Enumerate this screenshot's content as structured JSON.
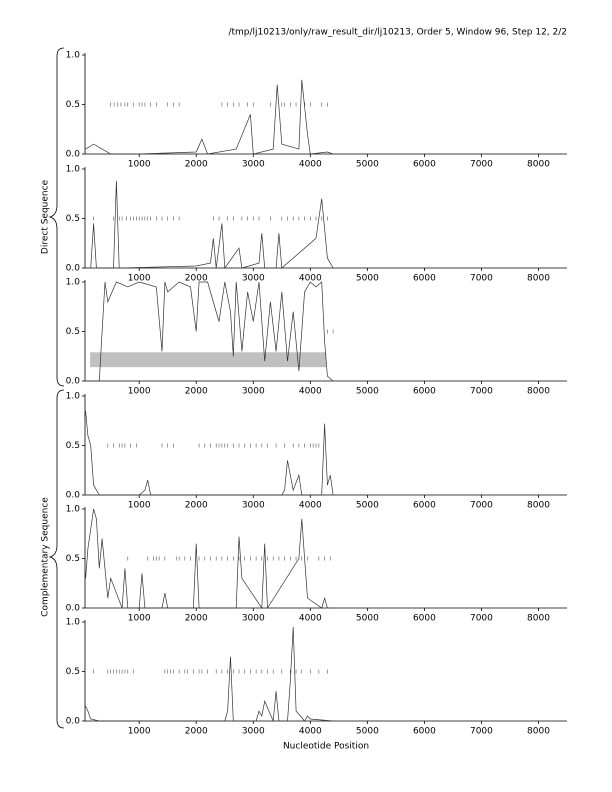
{
  "header": "/tmp/lj10213/only/raw_result_dir/lj10213, Order 5, Window 96, Step 12, 2/2",
  "group_labels": [
    "Direct Sequence",
    "Complementary Sequence"
  ],
  "xlabel": "Nucleotide Position",
  "chart_data": [
    {
      "type": "line",
      "color": "#333333",
      "xlim": [
        50,
        8500
      ],
      "ylim": [
        0,
        1
      ],
      "xticks": [
        1000,
        2000,
        3000,
        4000,
        5000,
        6000,
        7000,
        8000
      ],
      "yticks": [
        {
          "value": 0,
          "label": "0.0"
        },
        0.5,
        {
          "value": 1,
          "label": "1.0"
        }
      ],
      "x": [
        60,
        200,
        350,
        500,
        1000,
        2000,
        2100,
        2200,
        2700,
        2950,
        3000,
        3350,
        3420,
        3500,
        3800,
        3850,
        3950,
        4000,
        4300,
        4400
      ],
      "values": [
        0.05,
        0.1,
        0.05,
        0.0,
        0.0,
        0.02,
        0.15,
        0.0,
        0.05,
        0.4,
        0.0,
        0.05,
        0.7,
        0.1,
        0.05,
        0.75,
        0.2,
        0.0,
        0.02,
        0.0
      ],
      "marker_level": 0.5,
      "markers": [
        500,
        560,
        620,
        680,
        750,
        800,
        900,
        1000,
        1050,
        1100,
        1200,
        1300,
        1500,
        1600,
        1700,
        2450,
        2550,
        2650,
        2750,
        2900,
        3000,
        3300,
        3500,
        3550,
        3650,
        3750,
        3900,
        4000,
        4200,
        4300
      ]
    },
    {
      "type": "line",
      "color": "#333333",
      "xlim": [
        50,
        8500
      ],
      "ylim": [
        0,
        1
      ],
      "xticks": [
        1000,
        2000,
        3000,
        4000,
        5000,
        6000,
        7000,
        8000
      ],
      "yticks": [
        {
          "value": 0,
          "label": "0.0"
        },
        0.5,
        {
          "value": 1,
          "label": "1.0"
        }
      ],
      "x": [
        60,
        150,
        200,
        250,
        550,
        600,
        650,
        2000,
        2250,
        2300,
        2350,
        2450,
        2500,
        2750,
        2800,
        3100,
        3150,
        3200,
        3400,
        3450,
        3500,
        4100,
        4200,
        4300,
        4400
      ],
      "values": [
        0.0,
        0.0,
        0.45,
        0.0,
        0.0,
        0.88,
        0.0,
        0.02,
        0.05,
        0.3,
        0.0,
        0.45,
        0.0,
        0.2,
        0.0,
        0.05,
        0.35,
        0.0,
        0.0,
        0.35,
        0.0,
        0.3,
        0.7,
        0.1,
        0.0
      ],
      "marker_level": 0.5,
      "markers": [
        200,
        550,
        650,
        700,
        780,
        850,
        900,
        950,
        1000,
        1050,
        1100,
        1150,
        1200,
        1300,
        1400,
        1500,
        1600,
        1700,
        2300,
        2400,
        2550,
        2650,
        2800,
        2900,
        3000,
        3100,
        3300,
        3500,
        3600,
        3700,
        3800,
        3900,
        4000,
        4100,
        4200,
        4300
      ]
    },
    {
      "type": "line",
      "color": "#333333",
      "xlim": [
        50,
        8500
      ],
      "ylim": [
        0,
        1
      ],
      "xticks": [
        1000,
        2000,
        3000,
        4000,
        5000,
        6000,
        7000,
        8000
      ],
      "yticks": [
        {
          "value": 0,
          "label": "0.0"
        },
        0.5,
        {
          "value": 1,
          "label": "1.0"
        }
      ],
      "x": [
        60,
        300,
        350,
        400,
        450,
        600,
        800,
        1000,
        1300,
        1400,
        1450,
        1500,
        1700,
        1900,
        2000,
        2050,
        2200,
        2400,
        2500,
        2600,
        2650,
        2700,
        2800,
        2900,
        3000,
        3100,
        3200,
        3300,
        3400,
        3500,
        3600,
        3700,
        3800,
        3900,
        4000,
        4100,
        4200,
        4250,
        4300,
        4400
      ],
      "values": [
        0.0,
        0.0,
        0.5,
        1.0,
        0.8,
        1.0,
        0.95,
        1.0,
        0.95,
        0.3,
        1.0,
        0.9,
        1.0,
        0.95,
        0.5,
        1.0,
        1.0,
        0.6,
        1.0,
        0.7,
        0.25,
        1.0,
        0.3,
        0.9,
        0.6,
        1.0,
        0.2,
        0.8,
        0.3,
        0.9,
        0.2,
        0.7,
        0.1,
        0.9,
        1.0,
        0.95,
        1.0,
        0.4,
        0.05,
        0.0
      ],
      "highlight": {
        "xrange": [
          140,
          4280
        ],
        "yrange": [
          0.14,
          0.29
        ],
        "color": "#c0c0c0"
      },
      "marker_level": 0.5,
      "markers": [
        4300,
        4400
      ]
    },
    {
      "type": "line",
      "color": "#333333",
      "xlim": [
        50,
        8500
      ],
      "ylim": [
        0,
        1
      ],
      "xticks": [
        1000,
        2000,
        3000,
        4000,
        5000,
        6000,
        7000,
        8000
      ],
      "yticks": [
        {
          "value": 0,
          "label": "0.0"
        },
        0.5,
        {
          "value": 1,
          "label": "1.0"
        }
      ],
      "x": [
        60,
        100,
        150,
        200,
        300,
        1000,
        1100,
        1150,
        1200,
        3500,
        3550,
        3600,
        3700,
        3800,
        3850,
        4200,
        4250,
        4300,
        4350,
        4400
      ],
      "values": [
        0.85,
        0.6,
        0.5,
        0.1,
        0.0,
        0.0,
        0.05,
        0.15,
        0.0,
        0.0,
        0.05,
        0.35,
        0.05,
        0.2,
        0.0,
        0.0,
        0.72,
        0.1,
        0.2,
        0.0
      ],
      "marker_level": 0.5,
      "markers": [
        450,
        550,
        650,
        700,
        750,
        850,
        950,
        1400,
        1500,
        1600,
        2050,
        2150,
        2250,
        2350,
        2400,
        2450,
        2500,
        2550,
        2650,
        2750,
        2850,
        2950,
        3050,
        3150,
        3250,
        3400,
        3550,
        3700,
        3800,
        3900,
        4000,
        4050,
        4100,
        4150
      ]
    },
    {
      "type": "line",
      "color": "#333333",
      "xlim": [
        50,
        8500
      ],
      "ylim": [
        0,
        1
      ],
      "xticks": [
        1000,
        2000,
        3000,
        4000,
        5000,
        6000,
        7000,
        8000
      ],
      "yticks": [
        {
          "value": 0,
          "label": "0.0"
        },
        0.5,
        {
          "value": 1,
          "label": "1.0"
        }
      ],
      "x": [
        60,
        100,
        200,
        250,
        300,
        350,
        450,
        500,
        700,
        750,
        800,
        1000,
        1050,
        1100,
        1400,
        1450,
        1500,
        1950,
        2000,
        2050,
        2700,
        2750,
        2800,
        3150,
        3200,
        3250,
        3800,
        3850,
        3900,
        3950,
        4200,
        4250,
        4300,
        4400
      ],
      "values": [
        0.3,
        0.6,
        1.0,
        0.9,
        0.4,
        0.7,
        0.1,
        0.3,
        0.0,
        0.4,
        0.0,
        0.0,
        0.35,
        0.0,
        0.0,
        0.15,
        0.0,
        0.0,
        0.65,
        0.0,
        0.0,
        0.72,
        0.3,
        0.0,
        0.65,
        0.0,
        0.5,
        0.9,
        0.5,
        0.1,
        0.0,
        0.1,
        0.0,
        0.0
      ],
      "marker_level": 0.5,
      "markers": [
        800,
        1150,
        1250,
        1300,
        1350,
        1450,
        1650,
        1700,
        1800,
        1900,
        2050,
        2150,
        2250,
        2350,
        2450,
        2550,
        2650,
        2750,
        2850,
        2950,
        3050,
        3150,
        3250,
        3350,
        3450,
        3550,
        3650,
        3750,
        3850,
        3950,
        4150,
        4250,
        4350
      ]
    },
    {
      "type": "line",
      "color": "#333333",
      "xlim": [
        50,
        8500
      ],
      "ylim": [
        0,
        1
      ],
      "xticks": [
        1000,
        2000,
        3000,
        4000,
        5000,
        6000,
        7000,
        8000
      ],
      "yticks": [
        {
          "value": 0,
          "label": "0.0"
        },
        0.5,
        {
          "value": 1,
          "label": "1.0"
        }
      ],
      "x": [
        60,
        100,
        150,
        300,
        2500,
        2550,
        2600,
        2650,
        3050,
        3100,
        3150,
        3200,
        3350,
        3400,
        3450,
        3600,
        3650,
        3700,
        3750,
        3900,
        3950,
        4000,
        4400
      ],
      "values": [
        0.15,
        0.1,
        0.02,
        0.0,
        0.0,
        0.1,
        0.65,
        0.0,
        0.0,
        0.1,
        0.05,
        0.2,
        0.0,
        0.3,
        0.0,
        0.0,
        0.4,
        0.95,
        0.1,
        0.0,
        0.05,
        0.02,
        0.0
      ],
      "marker_level": 0.5,
      "markers": [
        200,
        450,
        500,
        550,
        600,
        650,
        700,
        750,
        800,
        900,
        1450,
        1500,
        1550,
        1600,
        1700,
        1800,
        1850,
        1950,
        2050,
        2100,
        2200,
        2350,
        2450,
        2550,
        2650,
        2750,
        2850,
        2950,
        3050,
        3150,
        3250,
        3350,
        3500,
        3650,
        3750,
        3850,
        4000,
        4150,
        4300
      ]
    }
  ]
}
